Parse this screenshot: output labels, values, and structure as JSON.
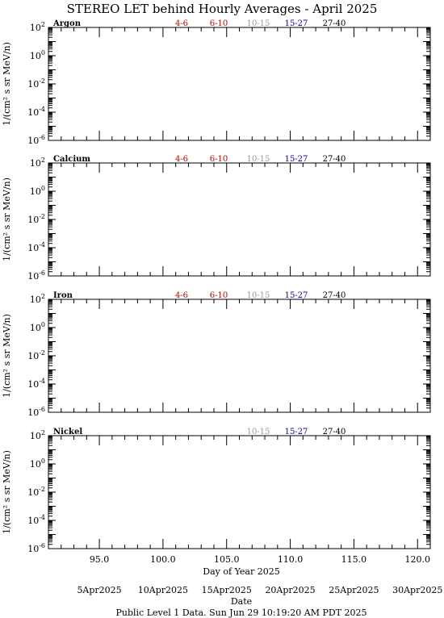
{
  "title": "STEREO LET behind Hourly Averages - April 2025",
  "ylabel": "1/(cm² s sr MeV/n)",
  "xlabel": "Day of Year 2025",
  "date_label": "Date",
  "footer": "Public Level 1 Data. Sun Jun 29 10:19:20 AM PDT 2025",
  "energy_colors": {
    "4-6": "#cc0000",
    "6-10": "#cc0000",
    "10-15": "#999999",
    "15-27": "#0000cc",
    "27-40": "#000000"
  },
  "chart_data": [
    {
      "type": "line",
      "panel": "Argon",
      "series": [
        {
          "name": "4-6",
          "values": []
        },
        {
          "name": "6-10",
          "values": []
        },
        {
          "name": "10-15",
          "values": []
        },
        {
          "name": "15-27",
          "values": []
        },
        {
          "name": "27-40",
          "values": []
        }
      ],
      "xlim": [
        91,
        121
      ],
      "ylim": [
        1e-06,
        100
      ],
      "yscale": "log",
      "yticks": [
        "10^2",
        "10^0",
        "10^-2",
        "10^-4",
        "10^-6"
      ]
    },
    {
      "type": "line",
      "panel": "Calcium",
      "series": [
        {
          "name": "4-6",
          "values": []
        },
        {
          "name": "6-10",
          "values": []
        },
        {
          "name": "10-15",
          "values": []
        },
        {
          "name": "15-27",
          "values": []
        },
        {
          "name": "27-40",
          "values": []
        }
      ],
      "xlim": [
        91,
        121
      ],
      "ylim": [
        1e-06,
        100
      ],
      "yscale": "log",
      "yticks": [
        "10^2",
        "10^0",
        "10^-2",
        "10^-4",
        "10^-6"
      ]
    },
    {
      "type": "line",
      "panel": "Iron",
      "series": [
        {
          "name": "4-6",
          "values": []
        },
        {
          "name": "6-10",
          "values": []
        },
        {
          "name": "10-15",
          "values": []
        },
        {
          "name": "15-27",
          "values": []
        },
        {
          "name": "27-40",
          "values": []
        }
      ],
      "xlim": [
        91,
        121
      ],
      "ylim": [
        1e-06,
        100
      ],
      "yscale": "log",
      "yticks": [
        "10^2",
        "10^0",
        "10^-2",
        "10^-4",
        "10^-6"
      ]
    },
    {
      "type": "line",
      "panel": "Nickel",
      "series": [
        {
          "name": "10-15",
          "values": []
        },
        {
          "name": "15-27",
          "values": []
        },
        {
          "name": "27-40",
          "values": []
        }
      ],
      "xlim": [
        91,
        121
      ],
      "ylim": [
        1e-06,
        100
      ],
      "yscale": "log",
      "yticks": [
        "10^2",
        "10^0",
        "10^-2",
        "10^-4",
        "10^-6"
      ]
    }
  ],
  "x_axis": {
    "ticks": [
      95,
      100,
      105,
      110,
      115,
      120
    ],
    "tick_labels": [
      "95.0",
      "100.0",
      "105.0",
      "110.0",
      "115.0",
      "120.0"
    ]
  },
  "date_axis": {
    "ticks": [
      95,
      100,
      105,
      110,
      115,
      120
    ],
    "tick_labels": [
      "5Apr2025",
      "10Apr2025",
      "15Apr2025",
      "20Apr2025",
      "25Apr2025",
      "30Apr2025"
    ]
  }
}
